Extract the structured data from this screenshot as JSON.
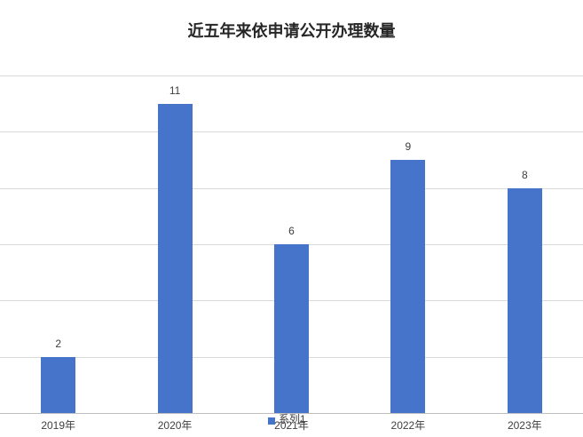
{
  "chart_data": {
    "type": "bar",
    "title": "近五年来依申请公开办理数量",
    "categories": [
      "2019年",
      "2020年",
      "2021年",
      "2022年",
      "2023年"
    ],
    "series": [
      {
        "name": "系列1",
        "values": [
          2,
          11,
          6,
          9,
          8
        ]
      }
    ],
    "xlabel": "",
    "ylabel": "",
    "ylim": [
      0,
      12
    ],
    "gridline_step": 2,
    "grid": true,
    "y_axis_labels_visible": false,
    "data_labels": [
      2,
      11,
      6,
      9,
      8
    ],
    "legend_position": "bottom-center",
    "colors": {
      "bar": "#4674ca",
      "gridline": "#d9d9d9",
      "axis_line": "#bfbfbf",
      "title_text": "#262626",
      "label_text": "#3d3d3d"
    }
  },
  "legend": {
    "marker": "blue-square",
    "label": "系列1"
  }
}
